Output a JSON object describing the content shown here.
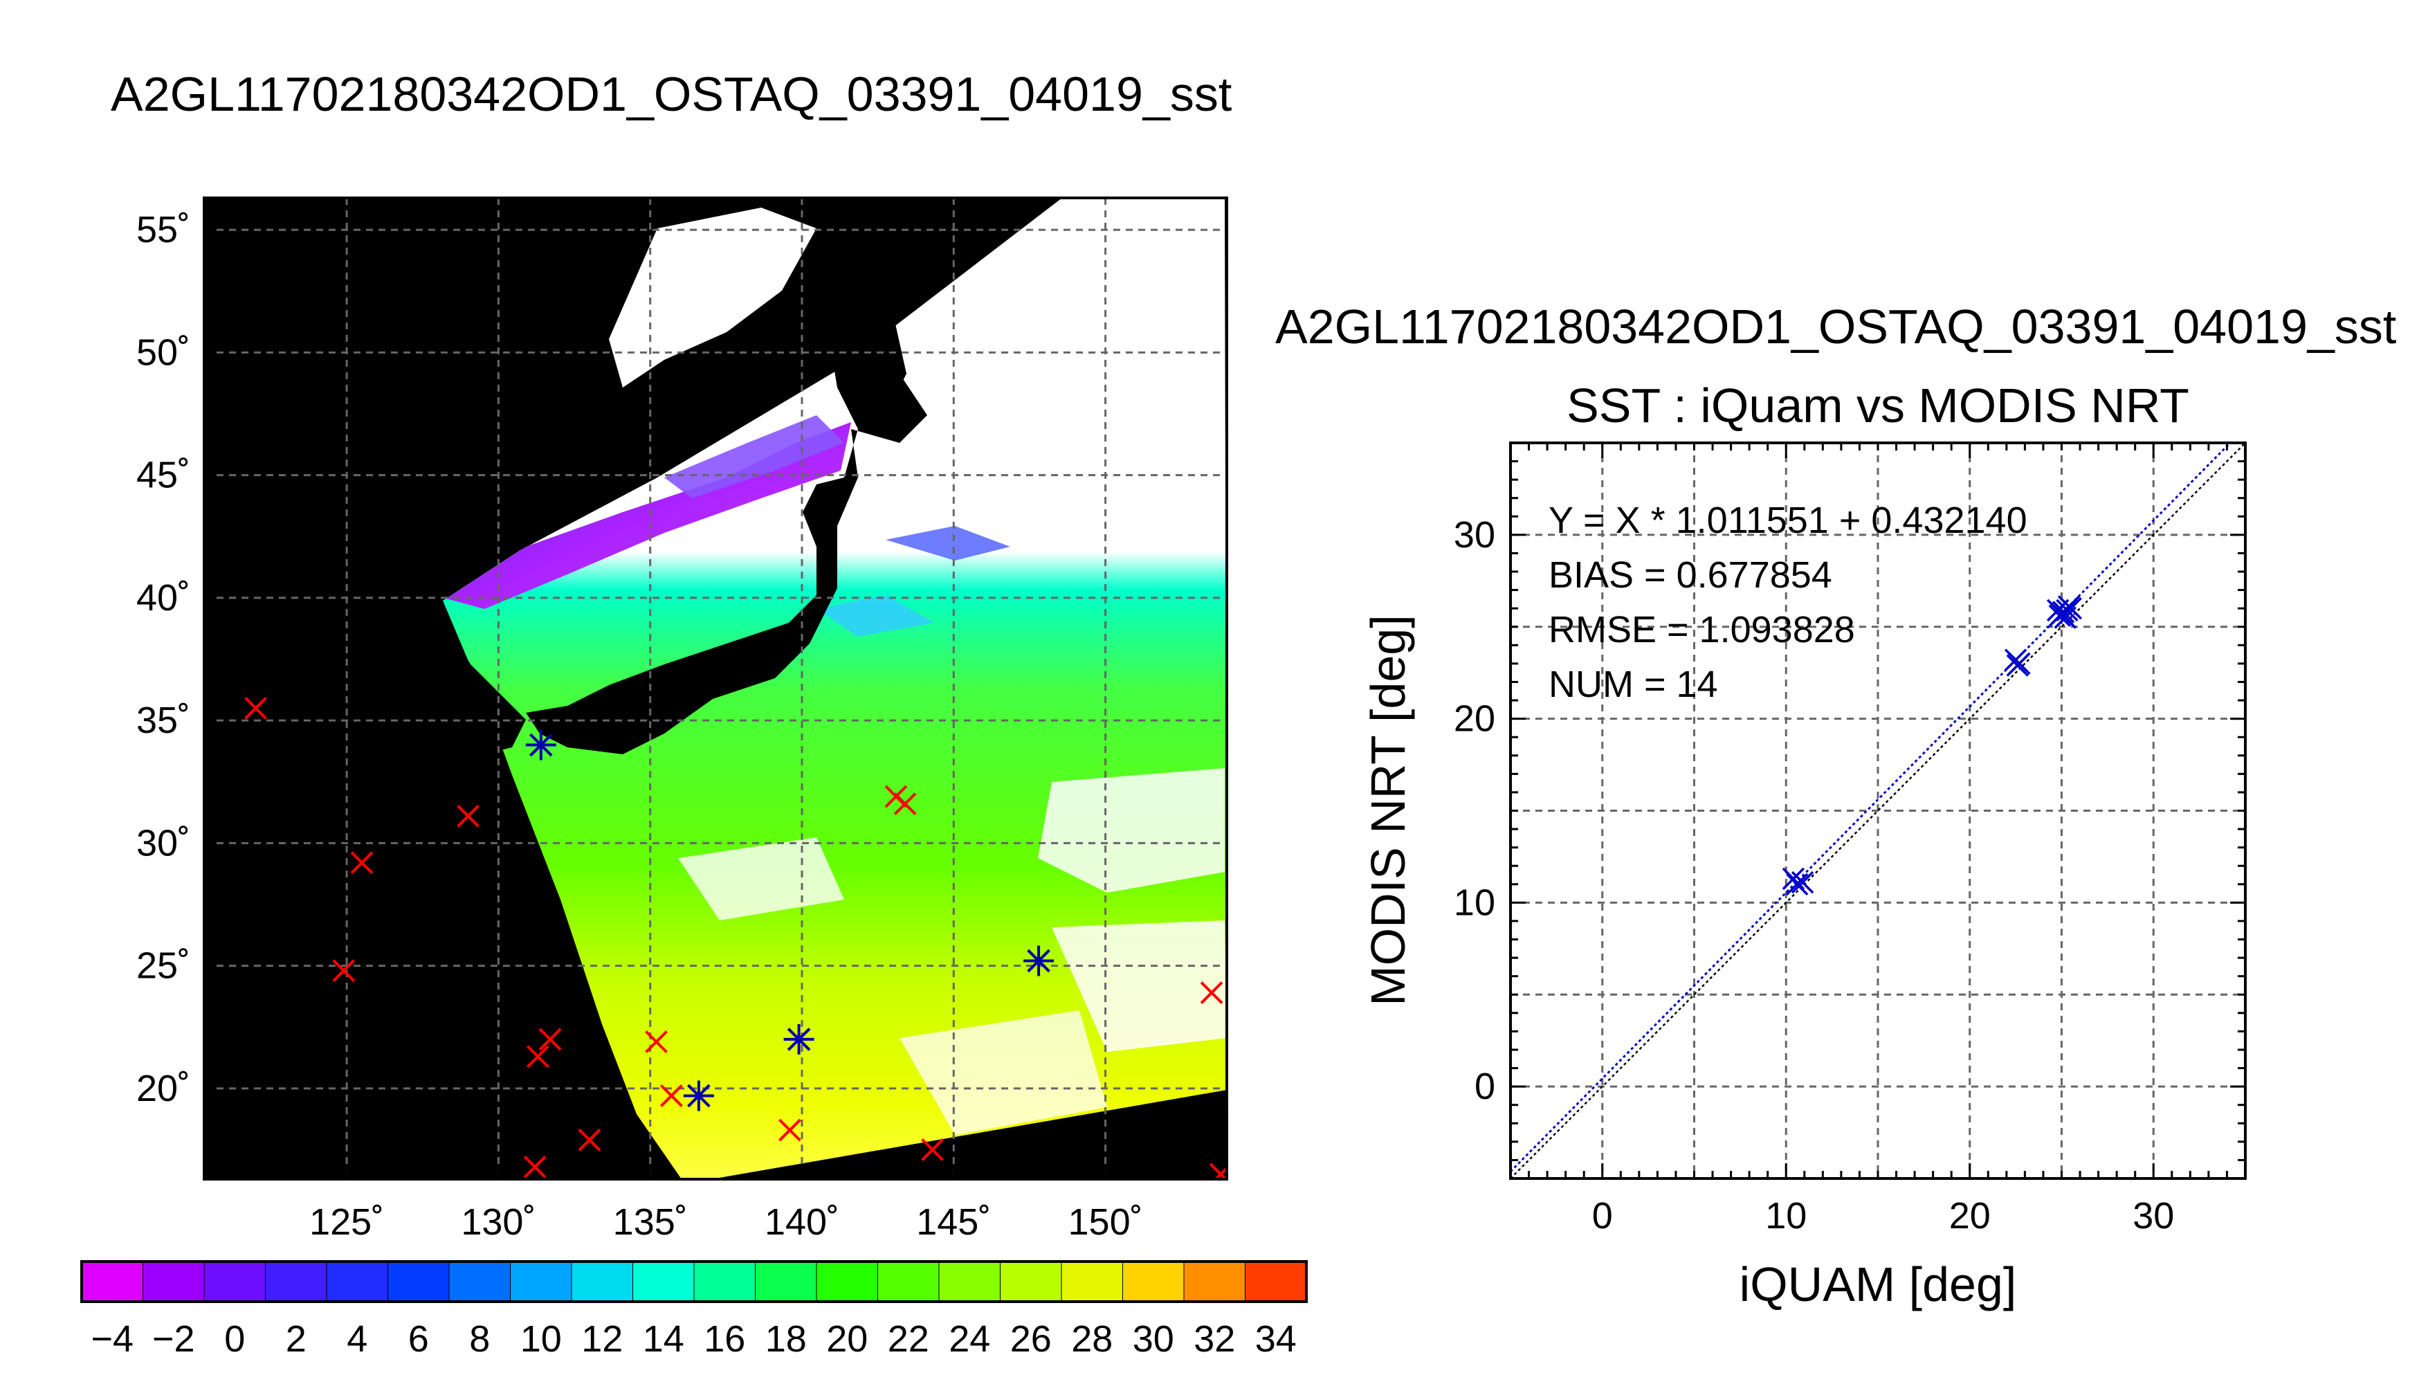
{
  "page": {
    "main_title": "A2GL11702180342OD1_OSTAQ_03391_04019_sst"
  },
  "map": {
    "lon_ticks": [
      125,
      130,
      135,
      140,
      145,
      150
    ],
    "lat_ticks": [
      55,
      50,
      45,
      40,
      35,
      30,
      25,
      20
    ],
    "lon_range": [
      120.3,
      154
    ],
    "lat_range": [
      16.3,
      56.3
    ],
    "lon_tick_labels": [
      "125˚",
      "130˚",
      "135˚",
      "140˚",
      "145˚",
      "150˚"
    ],
    "lat_tick_labels": [
      "55˚",
      "50˚",
      "45˚",
      "40˚",
      "35˚",
      "30˚",
      "25˚",
      "20˚"
    ],
    "background_color": "#000000",
    "marker_color": "#ff0000",
    "matched_marker_color": "#0000aa",
    "buoy_points": [
      [
        122.0,
        35.5
      ],
      [
        125.5,
        29.2
      ],
      [
        124.9,
        24.8
      ],
      [
        129.0,
        31.1
      ],
      [
        131.4,
        34.0
      ],
      [
        131.3,
        21.3
      ],
      [
        131.7,
        22.0
      ],
      [
        131.2,
        16.8
      ],
      [
        133.0,
        17.9
      ],
      [
        135.2,
        21.9
      ],
      [
        135.7,
        19.7
      ],
      [
        136.6,
        19.7
      ],
      [
        139.9,
        22.0
      ],
      [
        139.6,
        18.3
      ],
      [
        143.1,
        31.9
      ],
      [
        143.4,
        31.6
      ],
      [
        144.3,
        17.5
      ],
      [
        147.8,
        25.2
      ],
      [
        153.5,
        23.9
      ],
      [
        153.8,
        16.5
      ]
    ],
    "matched_points": [
      [
        131.4,
        34.0
      ],
      [
        136.6,
        19.7
      ],
      [
        139.9,
        22.0
      ],
      [
        147.8,
        25.2
      ]
    ]
  },
  "colorbar": {
    "min": -5,
    "max": 35,
    "tick_labels": [
      "−4",
      "−2",
      "0",
      "2",
      "4",
      "6",
      "8",
      "10",
      "12",
      "14",
      "16",
      "18",
      "20",
      "22",
      "24",
      "26",
      "28",
      "30",
      "32",
      "34"
    ],
    "tick_values": [
      -4,
      -2,
      0,
      2,
      4,
      6,
      8,
      10,
      12,
      14,
      16,
      18,
      20,
      22,
      24,
      26,
      28,
      30,
      32,
      34
    ]
  },
  "chart_data": {
    "type": "scatter",
    "super_title": "A2GL11702180342OD1_OSTAQ_03391_04019_sst",
    "title": "SST : iQuam vs MODIS NRT",
    "xlabel": "iQUAM [deg]",
    "ylabel": "MODIS NRT [deg]",
    "xlim": [
      -5,
      35
    ],
    "ylim": [
      -5,
      35
    ],
    "x_ticks": [
      0,
      10,
      20,
      30
    ],
    "y_ticks": [
      0,
      10,
      20,
      30
    ],
    "grid": true,
    "stats": [
      "Y = X * 1.011551 + 0.432140",
      "BIAS = 0.677854",
      "RMSE = 1.093828",
      "NUM = 14"
    ],
    "fit": {
      "slope": 1.011551,
      "intercept": 0.43214
    },
    "point_color": "#0000cc",
    "points": [
      {
        "x": 10.4,
        "y": 11.3
      },
      {
        "x": 10.9,
        "y": 11.1
      },
      {
        "x": 10.6,
        "y": 11.0
      },
      {
        "x": 22.5,
        "y": 23.2
      },
      {
        "x": 22.6,
        "y": 22.9
      },
      {
        "x": 22.7,
        "y": 23.0
      },
      {
        "x": 24.9,
        "y": 25.6
      },
      {
        "x": 25.1,
        "y": 25.8
      },
      {
        "x": 25.4,
        "y": 26.1
      },
      {
        "x": 24.8,
        "y": 25.9
      },
      {
        "x": 25.2,
        "y": 25.5
      },
      {
        "x": 25.3,
        "y": 25.9
      },
      {
        "x": 25.0,
        "y": 25.7
      },
      {
        "x": 25.5,
        "y": 26.0
      }
    ]
  }
}
